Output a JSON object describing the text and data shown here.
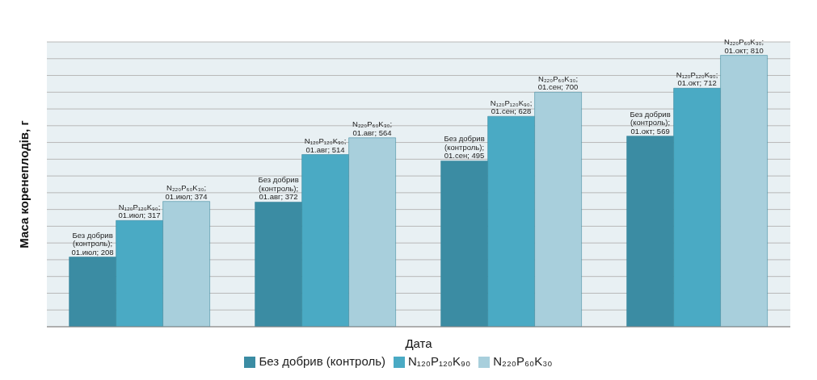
{
  "chart_data": {
    "type": "bar",
    "ylabel": "Маса коренеплодів, г",
    "xlabel": "Дата",
    "categories": [
      null,
      null,
      null,
      null
    ],
    "series": [
      {
        "name": "Без добрив (контроль)",
        "color": "#3b8ca3",
        "values": [
          208,
          372,
          495,
          569
        ],
        "value_labels": [
          "Без добрив (контроль); 01.июл; 208",
          "Без добрив (контроль); 01.авг; 372",
          "Без добрив (контроль); 01.сен; 495",
          "Без добрив (контроль); 01.окт; 569"
        ]
      },
      {
        "name": "N₁₂₀P₁₂₀K₉₀",
        "color": "#4aaac4",
        "values": [
          317,
          514,
          628,
          712
        ],
        "value_labels": [
          "N₁₂₀P₁₂₀K₉₀; 01.июл; 317",
          "N₁₂₀P₁₂₀K₉₀; 01.авг; 514",
          "N₁₂₀P₁₂₀K₉₀; 01.сен; 628",
          "N₁₂₀P₁₂₀K₉₀; 01.окт; 712"
        ]
      },
      {
        "name": "N₂₂₀P₆₀K₃₀",
        "color": "#a8cfdc",
        "values": [
          374,
          564,
          700,
          810
        ],
        "value_labels": [
          "N₂₂₀P₆₀K₃₀; 01.июл; 374",
          "N₂₂₀P₆₀K₃₀; 01.авг; 564",
          "N₂₂₀P₆₀K₃₀; 01.сен; 700",
          "N₂₂₀P₆₀K₃₀; 01.окт; 810"
        ]
      }
    ],
    "tick_labels": false,
    "grid": "y",
    "legend": "bottom"
  }
}
